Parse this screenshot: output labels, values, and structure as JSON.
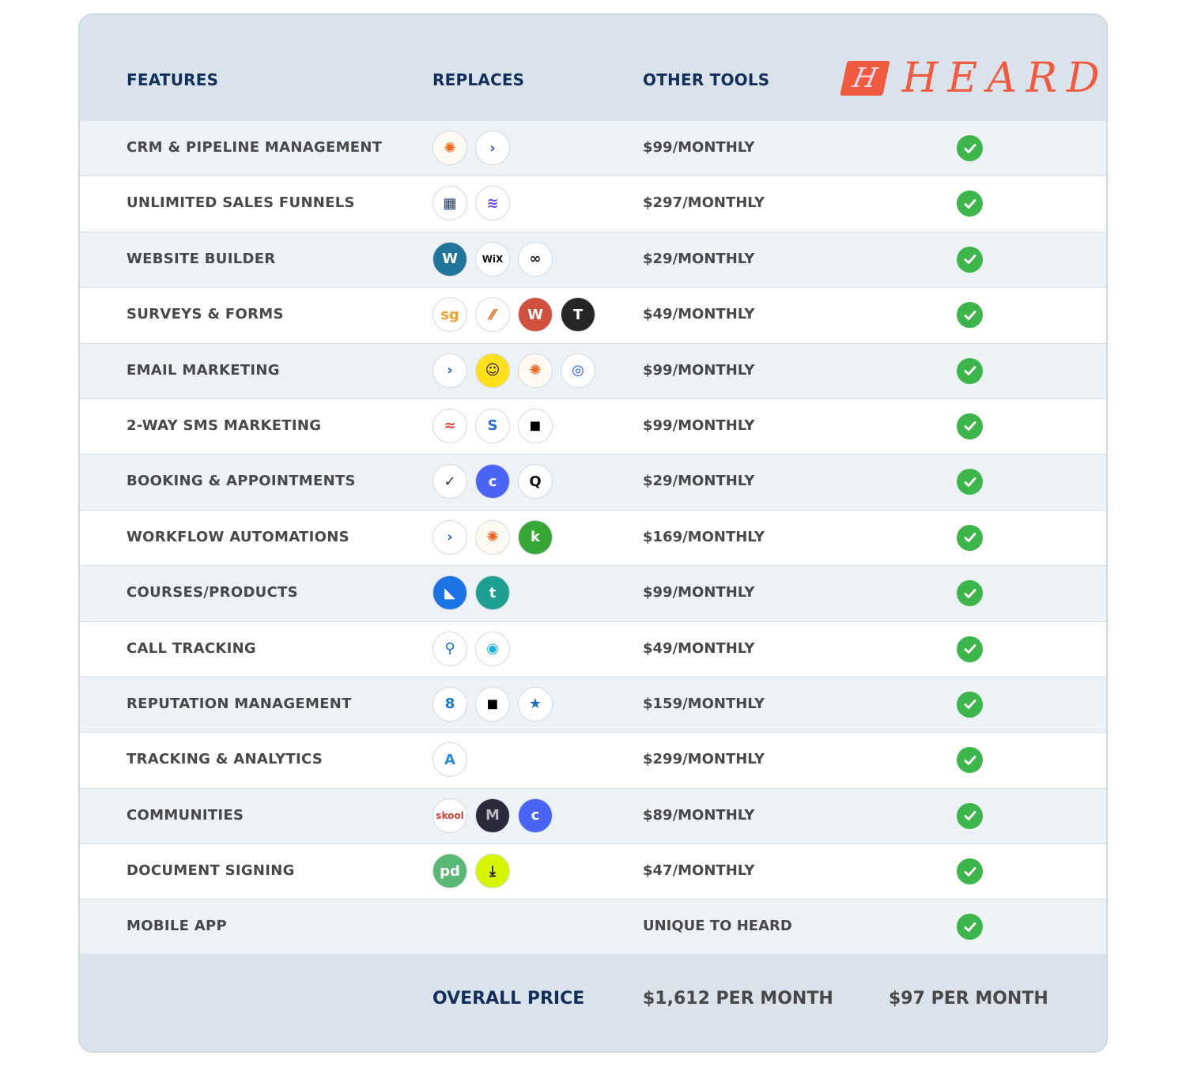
{
  "header": {
    "features": "FEATURES",
    "replaces": "REPLACES",
    "other_tools": "OTHER TOOLS",
    "brand": "HEARD",
    "brand_mark": "H",
    "brand_color": "#f05a3e"
  },
  "rows": [
    {
      "feature": "CRM & PIPELINE MANAGEMENT",
      "price": "$99/MONTHLY",
      "icons": [
        {
          "name": "hubspot-icon",
          "g": "✺",
          "bg": "#fdfaf2",
          "fg": "#f0641e"
        },
        {
          "name": "activecampaign-icon",
          "g": "›",
          "bg": "#fff",
          "fg": "#2f5be7"
        }
      ]
    },
    {
      "feature": "UNLIMITED SALES FUNNELS",
      "price": "$297/MONTHLY",
      "icons": [
        {
          "name": "clickfunnels-icon",
          "g": "▦",
          "bg": "#fff",
          "fg": "#1f3a66"
        },
        {
          "name": "layers-icon",
          "g": "≋",
          "bg": "#fff",
          "fg": "#6a4cf5"
        }
      ]
    },
    {
      "feature": "WEBSITE BUILDER",
      "price": "$29/MONTHLY",
      "icons": [
        {
          "name": "wordpress-icon",
          "g": "W",
          "bg": "#21759b",
          "fg": "#fff"
        },
        {
          "name": "wix-icon",
          "g": "WiX",
          "bg": "#fff",
          "fg": "#111"
        },
        {
          "name": "squarespace-icon",
          "g": "∞",
          "bg": "#fff",
          "fg": "#222"
        }
      ]
    },
    {
      "feature": "SURVEYS & FORMS",
      "price": "$49/MONTHLY",
      "icons": [
        {
          "name": "surveygizmo-icon",
          "g": "sg",
          "bg": "#fff",
          "fg": "#f0a030"
        },
        {
          "name": "jotform-icon",
          "g": "⁄⁄",
          "bg": "#fff",
          "fg": "#ff6100"
        },
        {
          "name": "wufoo-icon",
          "g": "W",
          "bg": "#d04f3d",
          "fg": "#fff"
        },
        {
          "name": "typeform-icon",
          "g": "T",
          "bg": "#262627",
          "fg": "#fff"
        }
      ]
    },
    {
      "feature": "EMAIL MARKETING",
      "price": "$99/MONTHLY",
      "icons": [
        {
          "name": "activecampaign-icon",
          "g": "›",
          "bg": "#fff",
          "fg": "#2f5be7"
        },
        {
          "name": "mailchimp-icon",
          "g": "☺",
          "bg": "#ffe01b",
          "fg": "#241c15"
        },
        {
          "name": "hubspot-icon",
          "g": "✺",
          "bg": "#fdfaf2",
          "fg": "#f0641e"
        },
        {
          "name": "constant-contact-icon",
          "g": "◎",
          "bg": "#fff",
          "fg": "#1856ed"
        }
      ]
    },
    {
      "feature": "2-WAY SMS MARKETING",
      "price": "$99/MONTHLY",
      "icons": [
        {
          "name": "layered-arches-icon",
          "g": "≈",
          "bg": "#fff",
          "fg": "#e8453c"
        },
        {
          "name": "s-logo-icon",
          "g": "S",
          "bg": "#fff",
          "fg": "#2a6ad8"
        },
        {
          "name": "podium-icon",
          "g": "◼",
          "bg": "#fff",
          "fg": "#000"
        }
      ]
    },
    {
      "feature": "BOOKING & APPOINTMENTS",
      "price": "$29/MONTHLY",
      "icons": [
        {
          "name": "acuity-icon",
          "g": "✓",
          "bg": "#fff",
          "fg": "#333"
        },
        {
          "name": "calendly-icon",
          "g": "c",
          "bg": "#4a64f5",
          "fg": "#fff"
        },
        {
          "name": "q-logo-icon",
          "g": "Q",
          "bg": "#fff",
          "fg": "#111"
        }
      ]
    },
    {
      "feature": "WORKFLOW AUTOMATIONS",
      "price": "$169/MONTHLY",
      "icons": [
        {
          "name": "activecampaign-icon",
          "g": "›",
          "bg": "#fff",
          "fg": "#2f5be7"
        },
        {
          "name": "hubspot-icon",
          "g": "✺",
          "bg": "#fdfaf2",
          "fg": "#f0641e"
        },
        {
          "name": "keap-icon",
          "g": "k",
          "bg": "#36a635",
          "fg": "#fff"
        }
      ]
    },
    {
      "feature": "COURSES/PRODUCTS",
      "price": "$99/MONTHLY",
      "icons": [
        {
          "name": "kajabi-icon",
          "g": "◣",
          "bg": "#1b74e4",
          "fg": "#fff"
        },
        {
          "name": "teachable-icon",
          "g": "t",
          "bg": "#1da092",
          "fg": "#fff"
        }
      ]
    },
    {
      "feature": "CALL TRACKING",
      "price": "$49/MONTHLY",
      "icons": [
        {
          "name": "callrail-icon",
          "g": "⚲",
          "bg": "#fff",
          "fg": "#1e73d8"
        },
        {
          "name": "ringing-icon",
          "g": "◉",
          "bg": "#fff",
          "fg": "#14b1e7"
        }
      ]
    },
    {
      "feature": "REPUTATION MANAGEMENT",
      "price": "$159/MONTHLY",
      "icons": [
        {
          "name": "birdeye-icon",
          "g": "8",
          "bg": "#fff",
          "fg": "#1976d2"
        },
        {
          "name": "podium-icon",
          "g": "◼",
          "bg": "#fff",
          "fg": "#000"
        },
        {
          "name": "star-icon",
          "g": "★",
          "bg": "#fff",
          "fg": "#1e6fc0"
        }
      ]
    },
    {
      "feature": "TRACKING & ANALYTICS",
      "price": "$299/MONTHLY",
      "icons": [
        {
          "name": "analytics-a-icon",
          "g": "A",
          "bg": "#fff",
          "fg": "#2a8bd9"
        }
      ]
    },
    {
      "feature": "COMMUNITIES",
      "price": "$89/MONTHLY",
      "icons": [
        {
          "name": "skool-icon",
          "g": "skool",
          "bg": "#fff",
          "fg": "#d4433a"
        },
        {
          "name": "mighty-icon",
          "g": "M",
          "bg": "#2a2a3a",
          "fg": "#bbb"
        },
        {
          "name": "circle-icon",
          "g": "c",
          "bg": "#4a64f5",
          "fg": "#fff"
        }
      ]
    },
    {
      "feature": "DOCUMENT SIGNING",
      "price": "$47/MONTHLY",
      "icons": [
        {
          "name": "pandadoc-icon",
          "g": "pd",
          "bg": "#5ab875",
          "fg": "#fff"
        },
        {
          "name": "download-icon",
          "g": "⤓",
          "bg": "#d7f500",
          "fg": "#111"
        }
      ]
    },
    {
      "feature": "MOBILE APP",
      "price": "UNIQUE TO HEARD",
      "icons": []
    }
  ],
  "footer": {
    "label": "OVERALL PRICE",
    "other_total": "$1,612 PER MONTH",
    "heard_total": "$97 PER MONTH"
  }
}
